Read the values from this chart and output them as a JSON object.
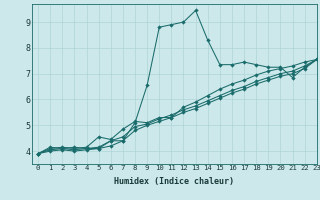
{
  "title": "",
  "xlabel": "Humidex (Indice chaleur)",
  "ylabel": "",
  "bg_color": "#cce8ea",
  "line_color": "#1a6b6b",
  "grid_color": "#aed4d6",
  "xlim": [
    -0.5,
    23
  ],
  "ylim": [
    3.5,
    9.7
  ],
  "xticks": [
    0,
    1,
    2,
    3,
    4,
    5,
    6,
    7,
    8,
    9,
    10,
    11,
    12,
    13,
    14,
    15,
    16,
    17,
    18,
    19,
    20,
    21,
    22,
    23
  ],
  "yticks": [
    4,
    5,
    6,
    7,
    8,
    9
  ],
  "series": [
    [
      3.9,
      4.15,
      4.1,
      4.15,
      4.1,
      4.1,
      4.4,
      4.4,
      5.1,
      6.55,
      8.8,
      8.9,
      9.0,
      9.45,
      8.3,
      7.35,
      7.35,
      7.45,
      7.35,
      7.25,
      7.25,
      6.85,
      7.25,
      7.55
    ],
    [
      3.9,
      4.1,
      4.15,
      4.1,
      4.15,
      4.55,
      4.45,
      4.85,
      5.15,
      5.1,
      5.3,
      5.3,
      5.7,
      5.9,
      6.15,
      6.4,
      6.6,
      6.75,
      6.95,
      7.1,
      7.2,
      7.3,
      7.45,
      7.55
    ],
    [
      3.9,
      4.05,
      4.1,
      4.05,
      4.1,
      4.15,
      4.4,
      4.55,
      4.95,
      5.05,
      5.25,
      5.4,
      5.6,
      5.75,
      5.95,
      6.15,
      6.35,
      6.5,
      6.7,
      6.85,
      7.0,
      7.1,
      7.3,
      7.55
    ],
    [
      3.9,
      4.0,
      4.05,
      4.0,
      4.05,
      4.1,
      4.2,
      4.4,
      4.8,
      5.0,
      5.15,
      5.3,
      5.5,
      5.65,
      5.85,
      6.05,
      6.25,
      6.4,
      6.6,
      6.75,
      6.9,
      7.0,
      7.2,
      7.55
    ]
  ],
  "xlabel_fontsize": 6.0,
  "tick_fontsize": 5.2,
  "ytick_fontsize": 6.0,
  "marker_size": 2.2,
  "line_width": 0.75
}
